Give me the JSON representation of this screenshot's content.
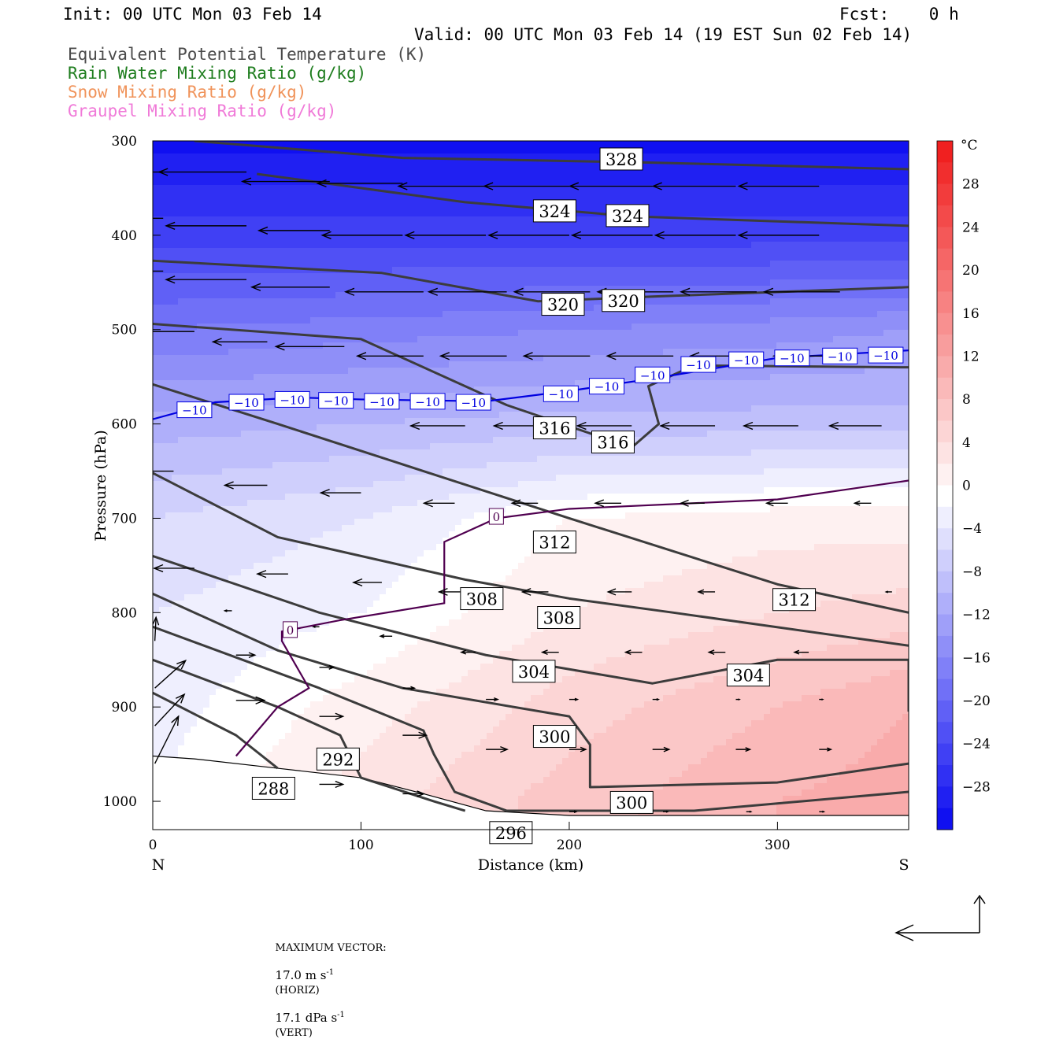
{
  "header": {
    "init": "Init: 00 UTC Mon 03 Feb 14",
    "fcst": "Fcst:    0 h",
    "valid": "Valid: 00 UTC Mon 03 Feb 14 (19 EST Sun 02 Feb 14)"
  },
  "fields": [
    {
      "label": "Equivalent Potential Temperature (K)",
      "color": "#4a4a4a"
    },
    {
      "label": "Rain Water Mixing Ratio (g/kg)",
      "color": "#1e7d1e"
    },
    {
      "label": "Snow Mixing Ratio (g/kg)",
      "color": "#f0935a"
    },
    {
      "label": "Graupel Mixing Ratio (g/kg)",
      "color": "#f07ad8"
    }
  ],
  "footer": {
    "max_vector_label": "MAXIMUM VECTOR:",
    "horiz": "17.0 m s",
    "horiz_unit": "(HORIZ)",
    "vert": "17.1 dPa s",
    "vert_unit": "(VERT)",
    "exp": "-1"
  },
  "chart_data": {
    "type": "cross-section",
    "xlabel": "Distance (km)",
    "ylabel": "Pressure (hPa)",
    "xlim": [
      0,
      363
    ],
    "ylim": [
      300,
      1030
    ],
    "x_ticks": [
      0,
      100,
      200,
      300
    ],
    "y_ticks": [
      300,
      400,
      500,
      600,
      700,
      800,
      900,
      1000
    ],
    "left_end_label": "N",
    "right_end_label": "S",
    "colorbar": {
      "unit": "°C",
      "range": [
        -32,
        32
      ],
      "tick_labels": [
        "28",
        "24",
        "20",
        "16",
        "12",
        "8",
        "4",
        "0",
        "−4",
        "−8",
        "−12",
        "−16",
        "−20",
        "−24",
        "−28"
      ],
      "tick_values": [
        28,
        24,
        20,
        16,
        12,
        8,
        4,
        0,
        -4,
        -8,
        -12,
        -16,
        -20,
        -24,
        -28
      ],
      "cold_color": "#0000f0",
      "neutral_color": "#ffffff",
      "warm_color": "#f02020"
    },
    "theta_e_contours": [
      {
        "value": 328,
        "points": [
          [
            20,
            300
          ],
          [
            120,
            318
          ],
          [
            240,
            323
          ],
          [
            363,
            330
          ]
        ]
      },
      {
        "value": 324,
        "points": [
          [
            50,
            335
          ],
          [
            150,
            365
          ],
          [
            230,
            380
          ],
          [
            363,
            390
          ]
        ]
      },
      {
        "value": 320,
        "points": [
          [
            0,
            427
          ],
          [
            110,
            440
          ],
          [
            185,
            470
          ],
          [
            240,
            465
          ],
          [
            363,
            455
          ]
        ]
      },
      {
        "value": 316,
        "points": [
          [
            0,
            494
          ],
          [
            100,
            510
          ],
          [
            170,
            580
          ],
          [
            230,
            625
          ],
          [
            243,
            600
          ],
          [
            238,
            560
          ],
          [
            260,
            538
          ],
          [
            363,
            540
          ]
        ]
      },
      {
        "value": 312,
        "points": [
          [
            0,
            558
          ],
          [
            60,
            600
          ],
          [
            130,
            650
          ],
          [
            200,
            700
          ],
          [
            300,
            770
          ],
          [
            363,
            800
          ]
        ]
      },
      {
        "value": 308,
        "points": [
          [
            0,
            652
          ],
          [
            60,
            720
          ],
          [
            150,
            765
          ],
          [
            200,
            785
          ],
          [
            250,
            800
          ],
          [
            363,
            835
          ]
        ]
      },
      {
        "value": 304,
        "points": [
          [
            0,
            740
          ],
          [
            80,
            800
          ],
          [
            160,
            845
          ],
          [
            240,
            875
          ],
          [
            300,
            850
          ],
          [
            363,
            850
          ],
          [
            363,
            905
          ]
        ]
      },
      {
        "value": 300,
        "points": [
          [
            0,
            780
          ],
          [
            60,
            840
          ],
          [
            120,
            880
          ],
          [
            200,
            910
          ],
          [
            210,
            940
          ],
          [
            210,
            985
          ],
          [
            300,
            980
          ],
          [
            363,
            960
          ]
        ]
      },
      {
        "value": 296,
        "points": [
          [
            0,
            815
          ],
          [
            80,
            880
          ],
          [
            130,
            925
          ],
          [
            135,
            950
          ],
          [
            145,
            990
          ],
          [
            170,
            1010
          ],
          [
            260,
            1010
          ],
          [
            363,
            990
          ]
        ]
      },
      {
        "value": 292,
        "points": [
          [
            0,
            850
          ],
          [
            60,
            900
          ],
          [
            90,
            930
          ],
          [
            100,
            975
          ],
          [
            135,
            1000
          ],
          [
            150,
            1010
          ]
        ]
      },
      {
        "value": 288,
        "points": [
          [
            0,
            885
          ],
          [
            40,
            930
          ],
          [
            60,
            965
          ]
        ]
      }
    ],
    "temperature_contours": [
      {
        "value": -10,
        "color": "#0000e0",
        "points": [
          [
            0,
            595
          ],
          [
            30,
            577
          ],
          [
            70,
            572
          ],
          [
            100,
            574
          ],
          [
            160,
            576
          ],
          [
            200,
            565
          ],
          [
            240,
            552
          ],
          [
            300,
            530
          ],
          [
            363,
            522
          ]
        ],
        "label_positions": [
          [
            20,
            585
          ],
          [
            45,
            577
          ],
          [
            67,
            574
          ],
          [
            88,
            575
          ],
          [
            110,
            576
          ],
          [
            132,
            576
          ],
          [
            154,
            577
          ],
          [
            196,
            568
          ],
          [
            218,
            560
          ],
          [
            240,
            548
          ],
          [
            262,
            537
          ],
          [
            285,
            532
          ],
          [
            307,
            530
          ],
          [
            330,
            528
          ],
          [
            352,
            527
          ]
        ]
      },
      {
        "value": 0,
        "color": "#500050",
        "points": [
          [
            40,
            952
          ],
          [
            60,
            900
          ],
          [
            75,
            880
          ],
          [
            62,
            830
          ],
          [
            62,
            820
          ],
          [
            90,
            808
          ],
          [
            140,
            790
          ],
          [
            140,
            725
          ],
          [
            165,
            700
          ],
          [
            200,
            690
          ],
          [
            300,
            680
          ],
          [
            363,
            660
          ]
        ],
        "label_positions": [
          [
            66,
            818
          ],
          [
            165,
            698
          ]
        ]
      }
    ],
    "theta_e_label_positions": [
      {
        "value": 328,
        "x": 225,
        "y": 320
      },
      {
        "value": 324,
        "x": 193,
        "y": 375
      },
      {
        "value": 324,
        "x": 228,
        "y": 380
      },
      {
        "value": 320,
        "x": 197,
        "y": 474
      },
      {
        "value": 320,
        "x": 226,
        "y": 470
      },
      {
        "value": 316,
        "x": 193,
        "y": 605
      },
      {
        "value": 316,
        "x": 221,
        "y": 620
      },
      {
        "value": 312,
        "x": 193,
        "y": 726
      },
      {
        "value": 312,
        "x": 308,
        "y": 787
      },
      {
        "value": 308,
        "x": 158,
        "y": 786
      },
      {
        "value": 308,
        "x": 195,
        "y": 806
      },
      {
        "value": 304,
        "x": 183,
        "y": 863
      },
      {
        "value": 304,
        "x": 286,
        "y": 867
      },
      {
        "value": 300,
        "x": 193,
        "y": 932
      },
      {
        "value": 300,
        "x": 230,
        "y": 1002
      },
      {
        "value": 292,
        "x": 89,
        "y": 956
      },
      {
        "value": 288,
        "x": 58,
        "y": 987
      },
      {
        "value": 296,
        "x": 172,
        "y": 1034
      }
    ],
    "terrain": [
      [
        0,
        952
      ],
      [
        20,
        955
      ],
      [
        60,
        965
      ],
      [
        100,
        975
      ],
      [
        130,
        992
      ],
      [
        160,
        1010
      ],
      [
        200,
        1015
      ],
      [
        363,
        1015
      ]
    ],
    "wind_vectors": [
      {
        "x": 5,
        "p": 333,
        "u": -7.2,
        "w": 0
      },
      {
        "x": 45,
        "p": 333,
        "u": -7.4,
        "w": 0
      },
      {
        "x": 85,
        "p": 343,
        "u": -7.4,
        "w": 0
      },
      {
        "x": 120,
        "p": 345,
        "u": -7.2,
        "w": 0
      },
      {
        "x": 160,
        "p": 348,
        "u": -7.4,
        "w": 0
      },
      {
        "x": 200,
        "p": 348,
        "u": -7.2,
        "w": 0
      },
      {
        "x": 240,
        "p": 348,
        "u": -7.0,
        "w": 0
      },
      {
        "x": 280,
        "p": 348,
        "u": -7.0,
        "w": 0
      },
      {
        "x": 320,
        "p": 348,
        "u": -6.8,
        "w": 0
      },
      {
        "x": 5,
        "p": 382,
        "u": -7.0,
        "w": 0
      },
      {
        "x": 45,
        "p": 390,
        "u": -6.8,
        "w": 0
      },
      {
        "x": 85,
        "p": 395,
        "u": -6.0,
        "w": 0
      },
      {
        "x": 120,
        "p": 400,
        "u": -6.8,
        "w": 0
      },
      {
        "x": 160,
        "p": 400,
        "u": -6.8,
        "w": 0
      },
      {
        "x": 200,
        "p": 400,
        "u": -6.8,
        "w": 0
      },
      {
        "x": 240,
        "p": 400,
        "u": -6.8,
        "w": 0
      },
      {
        "x": 280,
        "p": 400,
        "u": -6.8,
        "w": 0
      },
      {
        "x": 320,
        "p": 400,
        "u": -6.8,
        "w": 0
      },
      {
        "x": 5,
        "p": 438,
        "u": -7.0,
        "w": 0
      },
      {
        "x": 45,
        "p": 447,
        "u": -6.8,
        "w": 0
      },
      {
        "x": 85,
        "p": 455,
        "u": -6.6,
        "w": 0
      },
      {
        "x": 130,
        "p": 460,
        "u": -6.6,
        "w": 0
      },
      {
        "x": 170,
        "p": 460,
        "u": -6.6,
        "w": 0
      },
      {
        "x": 210,
        "p": 460,
        "u": -6.4,
        "w": 0
      },
      {
        "x": 250,
        "p": 460,
        "u": -6.4,
        "w": 0
      },
      {
        "x": 290,
        "p": 460,
        "u": -6.4,
        "w": 0
      },
      {
        "x": 330,
        "p": 460,
        "u": -6.4,
        "w": 0
      },
      {
        "x": 20,
        "p": 502,
        "u": -5.0,
        "w": 0
      },
      {
        "x": 55,
        "p": 513,
        "u": -4.6,
        "w": 0
      },
      {
        "x": 92,
        "p": 518,
        "u": -5.8,
        "w": 0
      },
      {
        "x": 130,
        "p": 528,
        "u": -5.6,
        "w": 0
      },
      {
        "x": 170,
        "p": 528,
        "u": -5.6,
        "w": 0
      },
      {
        "x": 210,
        "p": 528,
        "u": -5.6,
        "w": 0
      },
      {
        "x": 250,
        "p": 528,
        "u": -5.6,
        "w": 0
      },
      {
        "x": 290,
        "p": 528,
        "u": -5.6,
        "w": 0
      },
      {
        "x": 330,
        "p": 528,
        "u": -5.6,
        "w": 0
      },
      {
        "x": 150,
        "p": 602,
        "u": -4.6,
        "w": 0
      },
      {
        "x": 190,
        "p": 602,
        "u": -4.6,
        "w": 0
      },
      {
        "x": 230,
        "p": 602,
        "u": -4.6,
        "w": 0
      },
      {
        "x": 270,
        "p": 602,
        "u": -4.6,
        "w": 0
      },
      {
        "x": 310,
        "p": 602,
        "u": -4.6,
        "w": 0
      },
      {
        "x": 350,
        "p": 602,
        "u": -4.4,
        "w": 0
      },
      {
        "x": 10,
        "p": 650,
        "u": -4.6,
        "w": 0
      },
      {
        "x": 55,
        "p": 665,
        "u": -3.6,
        "w": 0
      },
      {
        "x": 100,
        "p": 673,
        "u": -3.4,
        "w": 0
      },
      {
        "x": 145,
        "p": 684,
        "u": -2.6,
        "w": 0
      },
      {
        "x": 185,
        "p": 684,
        "u": -2.2,
        "w": 0
      },
      {
        "x": 225,
        "p": 684,
        "u": -2.2,
        "w": 0
      },
      {
        "x": 265,
        "p": 684,
        "u": -2.0,
        "w": 0
      },
      {
        "x": 305,
        "p": 684,
        "u": -1.8,
        "w": 0
      },
      {
        "x": 345,
        "p": 684,
        "u": -1.4,
        "w": 0
      },
      {
        "x": 20,
        "p": 753,
        "u": -3.4,
        "w": 0
      },
      {
        "x": 65,
        "p": 759,
        "u": -2.6,
        "w": 0
      },
      {
        "x": 110,
        "p": 768,
        "u": -2.4,
        "w": 0
      },
      {
        "x": 150,
        "p": 778,
        "u": -2.2,
        "w": 0
      },
      {
        "x": 190,
        "p": 778,
        "u": -2.2,
        "w": 0
      },
      {
        "x": 230,
        "p": 778,
        "u": -2.0,
        "w": 0
      },
      {
        "x": 270,
        "p": 778,
        "u": -1.4,
        "w": 0
      },
      {
        "x": 310,
        "p": 778,
        "u": -1.2,
        "w": 0
      },
      {
        "x": 355,
        "p": 778,
        "u": -0.5,
        "w": 0
      },
      {
        "x": 38,
        "p": 798,
        "u": -0.6,
        "w": 0
      },
      {
        "x": 80,
        "p": 815,
        "u": -0.5,
        "w": 0
      },
      {
        "x": 115,
        "p": 825,
        "u": -1.0,
        "w": 0
      },
      {
        "x": 155,
        "p": 842,
        "u": -1.2,
        "w": 0
      },
      {
        "x": 195,
        "p": 842,
        "u": -1.4,
        "w": 0
      },
      {
        "x": 235,
        "p": 842,
        "u": -1.4,
        "w": 0
      },
      {
        "x": 275,
        "p": 842,
        "u": -1.4,
        "w": 0
      },
      {
        "x": 315,
        "p": 842,
        "u": -1.2,
        "w": 0
      },
      {
        "x": 40,
        "p": 845,
        "u": 1.6,
        "w": 0
      },
      {
        "x": 80,
        "p": 858,
        "u": 1.2,
        "w": 0
      },
      {
        "x": 120,
        "p": 880,
        "u": 1.0,
        "w": 0
      },
      {
        "x": 160,
        "p": 892,
        "u": 1.0,
        "w": 0
      },
      {
        "x": 200,
        "p": 892,
        "u": 0.7,
        "w": 0
      },
      {
        "x": 240,
        "p": 892,
        "u": 0.5,
        "w": 0
      },
      {
        "x": 280,
        "p": 892,
        "u": 0.3,
        "w": 0
      },
      {
        "x": 320,
        "p": 892,
        "u": 0.3,
        "w": 0
      },
      {
        "x": 40,
        "p": 893,
        "u": 2.4,
        "w": 0
      },
      {
        "x": 80,
        "p": 910,
        "u": 2.0,
        "w": 0
      },
      {
        "x": 120,
        "p": 930,
        "u": 2.0,
        "w": 0
      },
      {
        "x": 160,
        "p": 945,
        "u": 1.8,
        "w": 0
      },
      {
        "x": 200,
        "p": 945,
        "u": 1.4,
        "w": 0
      },
      {
        "x": 240,
        "p": 945,
        "u": 1.4,
        "w": 0
      },
      {
        "x": 280,
        "p": 945,
        "u": 1.2,
        "w": 0
      },
      {
        "x": 320,
        "p": 945,
        "u": 1.0,
        "w": 0
      },
      {
        "x": 80,
        "p": 982,
        "u": 2.0,
        "w": 0
      },
      {
        "x": 120,
        "p": 992,
        "u": 1.8,
        "w": 0
      },
      {
        "x": 200,
        "p": 1011,
        "u": 0.6,
        "w": 0
      },
      {
        "x": 245,
        "p": 1011,
        "u": 0.4,
        "w": 0
      },
      {
        "x": 285,
        "p": 1011,
        "u": 0.4,
        "w": 0
      },
      {
        "x": 320,
        "p": 1011,
        "u": 0.4,
        "w": 0
      },
      {
        "x": 1,
        "p": 960,
        "u": 2.0,
        "w": -60
      },
      {
        "x": 1,
        "p": 920,
        "u": 2.5,
        "w": -40
      },
      {
        "x": 1,
        "p": 880,
        "u": 2.6,
        "w": -35
      },
      {
        "x": 1,
        "p": 830,
        "u": 0.1,
        "w": -30
      }
    ],
    "temperature_field": {
      "y_levels": [
        300,
        400,
        500,
        600,
        700,
        800,
        900,
        1000
      ],
      "x_columns": [
        0,
        100,
        200,
        300,
        363
      ],
      "values": [
        [
          -30,
          -30,
          -30,
          -30,
          -30
        ],
        [
          -24,
          -24,
          -24,
          -24,
          -24
        ],
        [
          -17,
          -16,
          -15,
          -14,
          -13
        ],
        [
          -10,
          -9,
          -8,
          -8,
          -8
        ],
        [
          -5,
          -3,
          1,
          2,
          2
        ],
        [
          -3,
          -1,
          3,
          5,
          6
        ],
        [
          -2,
          2,
          6,
          9,
          11
        ],
        [
          -1,
          4,
          8,
          11,
          12
        ]
      ]
    }
  }
}
